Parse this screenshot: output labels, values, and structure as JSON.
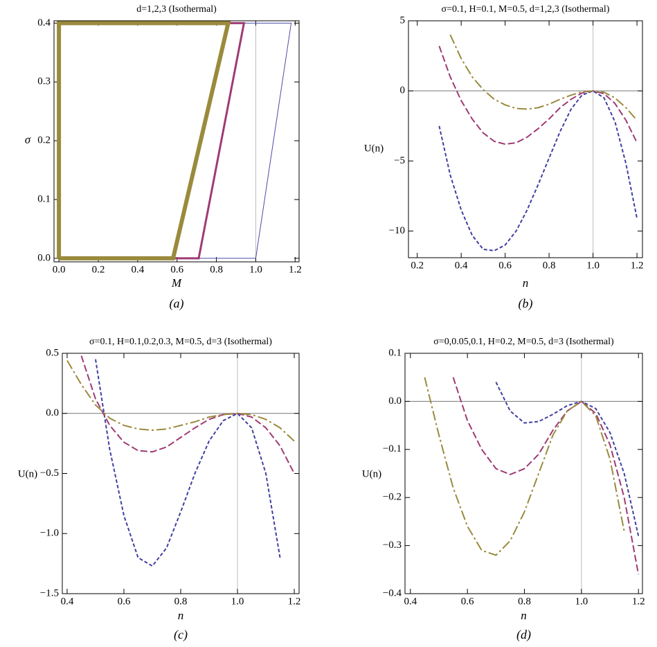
{
  "chart_data": [
    {
      "type": "line",
      "title": "d=1,2,3 (Isothermal)",
      "x_label": "M",
      "y_label": "σ",
      "caption": "(a)",
      "xlim": [
        -0.025,
        1.22
      ],
      "ylim": [
        -0.006,
        0.404
      ],
      "xticks": [
        {
          "value": 0,
          "label": "0.0"
        },
        0.2,
        0.4,
        0.6,
        0.8,
        {
          "value": 1,
          "label": "1.0"
        },
        1.2
      ],
      "yticks": [
        {
          "value": 0,
          "label": "0.0"
        },
        0.1,
        0.2,
        0.3,
        0.4
      ],
      "vline": 1,
      "series": [
        {
          "color": "#4b4ba8",
          "line_width": 1,
          "x": [
            0,
            1,
            1.18,
            0,
            0
          ],
          "values": [
            0,
            0,
            0.4,
            0.4,
            0
          ]
        },
        {
          "color": "#9e3a73",
          "line_width": 3,
          "x": [
            0,
            0.71,
            0.94,
            0,
            0
          ],
          "values": [
            0,
            0,
            0.4,
            0.4,
            0
          ]
        },
        {
          "color": "#9a8a3c",
          "line_width": 6,
          "x": [
            0,
            0.58,
            0.86,
            0,
            0
          ],
          "values": [
            0,
            0,
            0.4,
            0.4,
            0
          ]
        }
      ]
    },
    {
      "type": "line",
      "title": "σ=0.1, H=0.1, M=0.5, d=1,2,3 (Isothermal)",
      "x_label": "n",
      "y_label": "U(n)",
      "caption": "(b)",
      "xlim": [
        0.16,
        1.225
      ],
      "ylim": [
        -11.9,
        5
      ],
      "xticks": [
        0.2,
        0.4,
        0.6,
        0.8,
        {
          "value": 1,
          "label": "1.0"
        },
        1.2
      ],
      "yticks": [
        5,
        0,
        {
          "value": -5,
          "label": "−5"
        },
        {
          "value": -10,
          "label": "−10"
        }
      ],
      "vline": 1,
      "hline": 0,
      "x": [
        0.2,
        0.25,
        0.3,
        0.35,
        0.4,
        0.45,
        0.5,
        0.55,
        0.6,
        0.65,
        0.7,
        0.75,
        0.8,
        0.85,
        0.9,
        0.95,
        1.0,
        1.05,
        1.1,
        1.15,
        1.2
      ],
      "series": [
        {
          "color": "#3f3fa0",
          "dash": "5,3",
          "values": [
            null,
            null,
            -2.5,
            -6,
            -8.5,
            -10.3,
            -11.3,
            -11.4,
            -11,
            -10,
            -8.5,
            -6.7,
            -4.8,
            -2.9,
            -1.3,
            -0.3,
            0,
            -0.5,
            -2.2,
            -5.2,
            -9.1
          ]
        },
        {
          "color": "#9e3a73",
          "dash": "10,4",
          "values": [
            null,
            null,
            3.2,
            1.0,
            -0.7,
            -2.0,
            -3.0,
            -3.6,
            -3.8,
            -3.7,
            -3.3,
            -2.7,
            -2.0,
            -1.2,
            -0.6,
            -0.15,
            0,
            -0.2,
            -0.9,
            -2.1,
            -3.7
          ]
        },
        {
          "color": "#9a8a3c",
          "dash": "14,4,3,4",
          "values": [
            null,
            null,
            null,
            4.0,
            2.3,
            1.0,
            0.1,
            -0.6,
            -1.0,
            -1.25,
            -1.3,
            -1.2,
            -0.95,
            -0.6,
            -0.3,
            -0.07,
            0,
            -0.1,
            -0.5,
            -1.2,
            -2.1
          ]
        }
      ]
    },
    {
      "type": "line",
      "title": "σ=0.1, H=0.1,0.2,0.3, M=0.5, d=3 (Isothermal)",
      "x_label": "n",
      "y_label": "U(n)",
      "caption": "(c)",
      "xlim": [
        0.383,
        1.217
      ],
      "ylim": [
        -1.5,
        0.5
      ],
      "xticks": [
        0.4,
        0.6,
        0.8,
        {
          "value": 1,
          "label": "1.0"
        },
        1.2
      ],
      "yticks": [
        0.5,
        {
          "value": 0,
          "label": "0.0"
        },
        {
          "value": -0.5,
          "label": "−0.5"
        },
        {
          "value": -1,
          "label": "−1.0"
        },
        {
          "value": -1.5,
          "label": "−1.5"
        }
      ],
      "vline": 1,
      "hline": 0,
      "x": [
        0.4,
        0.45,
        0.5,
        0.55,
        0.6,
        0.65,
        0.7,
        0.75,
        0.8,
        0.85,
        0.9,
        0.95,
        1.0,
        1.05,
        1.1,
        1.15,
        1.2
      ],
      "series": [
        {
          "color": "#3f3fa0",
          "dash": "5,3",
          "values": [
            null,
            null,
            0.45,
            -0.3,
            -0.85,
            -1.2,
            -1.27,
            -1.12,
            -0.82,
            -0.5,
            -0.23,
            -0.06,
            0,
            -0.12,
            -0.5,
            -1.2,
            null
          ]
        },
        {
          "color": "#9e3a73",
          "dash": "10,4",
          "values": [
            null,
            0.48,
            0.12,
            -0.1,
            -0.24,
            -0.31,
            -0.32,
            -0.28,
            -0.2,
            -0.12,
            -0.05,
            -0.01,
            0,
            -0.03,
            -0.12,
            -0.27,
            -0.5
          ]
        },
        {
          "color": "#9a8a3c",
          "dash": "14,4,3,4",
          "values": [
            0.44,
            0.24,
            0.07,
            -0.04,
            -0.1,
            -0.13,
            -0.14,
            -0.13,
            -0.1,
            -0.07,
            -0.03,
            -0.01,
            0,
            -0.01,
            -0.05,
            -0.12,
            -0.23
          ]
        }
      ]
    },
    {
      "type": "line",
      "title": "σ=0,0.05,0.1, H=0.2, M=0.5, d=3 (Isothermal)",
      "x_label": "n",
      "y_label": "U(n)",
      "caption": "(d)",
      "xlim": [
        0.381,
        1.214
      ],
      "ylim": [
        -0.4,
        0.1
      ],
      "xticks": [
        0.4,
        0.6,
        0.8,
        {
          "value": 1,
          "label": "1.0"
        },
        1.2
      ],
      "yticks": [
        0.1,
        {
          "value": 0,
          "label": "0.0"
        },
        {
          "value": -0.1,
          "label": "−0.1"
        },
        {
          "value": -0.2,
          "label": "−0.2"
        },
        {
          "value": -0.3,
          "label": "−0.3"
        },
        {
          "value": -0.4,
          "label": "−0.4"
        }
      ],
      "vline": 1,
      "hline": 0,
      "x": [
        0.45,
        0.5,
        0.55,
        0.6,
        0.65,
        0.7,
        0.75,
        0.8,
        0.85,
        0.9,
        0.95,
        1.0,
        1.05,
        1.1,
        1.15,
        1.2
      ],
      "series": [
        {
          "color": "#3f3fa0",
          "dash": "5,3",
          "values": [
            null,
            null,
            null,
            null,
            null,
            0.04,
            -0.02,
            -0.045,
            -0.042,
            -0.027,
            -0.009,
            0,
            -0.015,
            -0.065,
            -0.15,
            -0.28
          ]
        },
        {
          "color": "#9e3a73",
          "dash": "10,4",
          "values": [
            null,
            null,
            0.05,
            -0.04,
            -0.1,
            -0.14,
            -0.152,
            -0.14,
            -0.11,
            -0.06,
            -0.02,
            0,
            -0.025,
            -0.09,
            -0.2,
            -0.36
          ]
        },
        {
          "color": "#9a8a3c",
          "dash": "14,4,3,4",
          "values": [
            0.05,
            -0.07,
            -0.18,
            -0.26,
            -0.31,
            -0.32,
            -0.29,
            -0.23,
            -0.15,
            -0.07,
            -0.02,
            0,
            -0.03,
            -0.12,
            -0.27,
            null
          ]
        }
      ]
    }
  ]
}
